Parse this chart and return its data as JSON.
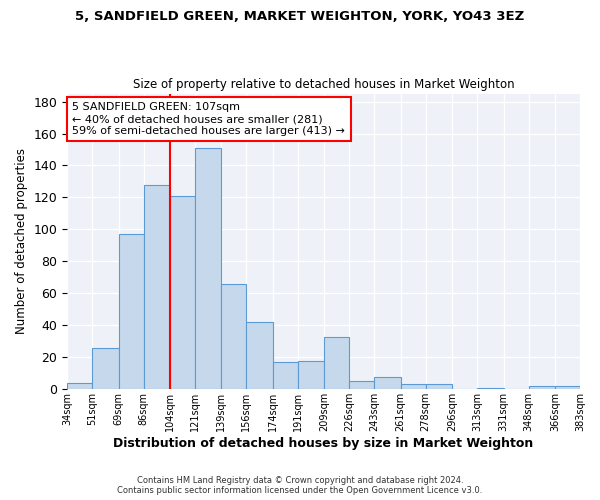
{
  "title": "5, SANDFIELD GREEN, MARKET WEIGHTON, YORK, YO43 3EZ",
  "subtitle": "Size of property relative to detached houses in Market Weighton",
  "xlabel": "Distribution of detached houses by size in Market Weighton",
  "ylabel": "Number of detached properties",
  "footer_line1": "Contains HM Land Registry data © Crown copyright and database right 2024.",
  "footer_line2": "Contains public sector information licensed under the Open Government Licence v3.0.",
  "bar_color": "#c6d9ec",
  "bar_edgecolor": "#5b9bd5",
  "background_color": "#eef2f8",
  "grid_color": "#d0d8e8",
  "annotation_text": "5 SANDFIELD GREEN: 107sqm\n← 40% of detached houses are smaller (281)\n59% of semi-detached houses are larger (413) →",
  "annotation_box_edgecolor": "red",
  "vline_x": 104,
  "vline_color": "red",
  "ylim": [
    0,
    185
  ],
  "yticks": [
    0,
    20,
    40,
    60,
    80,
    100,
    120,
    140,
    160,
    180
  ],
  "bin_edges": [
    34,
    51,
    69,
    86,
    104,
    121,
    139,
    156,
    174,
    191,
    209,
    226,
    243,
    261,
    278,
    296,
    313,
    331,
    348,
    366,
    383
  ],
  "bin_labels": [
    "34sqm",
    "51sqm",
    "69sqm",
    "86sqm",
    "104sqm",
    "121sqm",
    "139sqm",
    "156sqm",
    "174sqm",
    "191sqm",
    "209sqm",
    "226sqm",
    "243sqm",
    "261sqm",
    "278sqm",
    "296sqm",
    "313sqm",
    "331sqm",
    "348sqm",
    "366sqm",
    "383sqm"
  ],
  "bar_heights": [
    4,
    26,
    97,
    128,
    121,
    151,
    66,
    42,
    17,
    18,
    33,
    5,
    8,
    3,
    3,
    0,
    1,
    0,
    2,
    2
  ],
  "figsize": [
    6.0,
    5.0
  ],
  "dpi": 100
}
